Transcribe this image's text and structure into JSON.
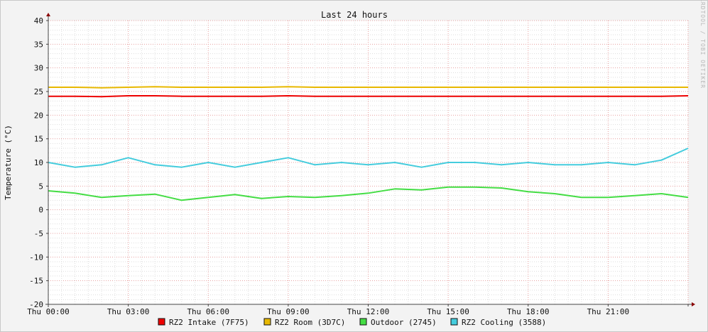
{
  "chart_data": {
    "type": "line",
    "title": "Last 24 hours",
    "ylabel": "Temperature (°C)",
    "watermark": "RRDTOOL / TOBI OETIKER",
    "ylim": [
      -20,
      40
    ],
    "y_ticks": [
      40,
      35,
      30,
      25,
      20,
      15,
      10,
      5,
      0,
      -5,
      -10,
      -15,
      -20
    ],
    "x_range_hours": [
      0,
      24
    ],
    "x_ticks": [
      {
        "hour": 0,
        "label": "Thu 00:00"
      },
      {
        "hour": 3,
        "label": "Thu 03:00"
      },
      {
        "hour": 6,
        "label": "Thu 06:00"
      },
      {
        "hour": 9,
        "label": "Thu 09:00"
      },
      {
        "hour": 12,
        "label": "Thu 12:00"
      },
      {
        "hour": 15,
        "label": "Thu 15:00"
      },
      {
        "hour": 18,
        "label": "Thu 18:00"
      },
      {
        "hour": 21,
        "label": "Thu 21:00"
      }
    ],
    "grid": true,
    "legend_position": "bottom",
    "series": [
      {
        "name": "RZ2 Intake (7F75)",
        "color": "#ee0000",
        "x": [
          0,
          1,
          2,
          3,
          4,
          5,
          6,
          7,
          8,
          9,
          10,
          11,
          12,
          13,
          14,
          15,
          16,
          17,
          18,
          19,
          20,
          21,
          22,
          23,
          24
        ],
        "y": [
          24.0,
          24.0,
          23.9,
          24.1,
          24.1,
          24.0,
          24.0,
          24.0,
          24.0,
          24.1,
          24.0,
          24.0,
          24.0,
          24.0,
          24.0,
          24.0,
          24.0,
          24.0,
          24.0,
          24.0,
          24.0,
          24.0,
          24.0,
          24.0,
          24.1
        ]
      },
      {
        "name": "RZ2 Room (3D7C)",
        "color": "#e8b800",
        "x": [
          0,
          1,
          2,
          3,
          4,
          5,
          6,
          7,
          8,
          9,
          10,
          11,
          12,
          13,
          14,
          15,
          16,
          17,
          18,
          19,
          20,
          21,
          22,
          23,
          24
        ],
        "y": [
          25.9,
          25.9,
          25.8,
          25.9,
          26.0,
          25.9,
          25.9,
          25.9,
          25.9,
          26.0,
          25.9,
          25.9,
          25.9,
          25.9,
          25.9,
          25.9,
          25.9,
          25.9,
          25.9,
          25.9,
          25.9,
          25.9,
          25.9,
          25.9,
          25.9
        ]
      },
      {
        "name": "Outdoor (2745)",
        "color": "#44dd44",
        "x": [
          0,
          1,
          2,
          3,
          4,
          5,
          6,
          7,
          8,
          9,
          10,
          11,
          12,
          13,
          14,
          15,
          16,
          17,
          18,
          19,
          20,
          21,
          22,
          23,
          24
        ],
        "y": [
          4.0,
          3.5,
          2.6,
          3.0,
          3.3,
          2.0,
          2.6,
          3.2,
          2.4,
          2.8,
          2.6,
          3.0,
          3.5,
          4.4,
          4.2,
          4.8,
          4.8,
          4.6,
          3.8,
          3.4,
          2.6,
          2.6,
          3.0,
          3.4,
          2.6
        ]
      },
      {
        "name": "RZ2 Cooling (3588)",
        "color": "#44ccdd",
        "x": [
          0,
          1,
          2,
          3,
          4,
          5,
          6,
          7,
          8,
          9,
          10,
          11,
          12,
          13,
          14,
          15,
          16,
          17,
          18,
          19,
          20,
          21,
          22,
          23,
          24
        ],
        "y": [
          10.0,
          9.0,
          9.5,
          11.0,
          9.5,
          9.0,
          10.0,
          9.0,
          10.0,
          11.0,
          9.5,
          10.0,
          9.5,
          10.0,
          9.0,
          10.0,
          10.0,
          9.5,
          10.0,
          9.5,
          9.5,
          10.0,
          9.5,
          10.5,
          13.0
        ]
      }
    ]
  }
}
